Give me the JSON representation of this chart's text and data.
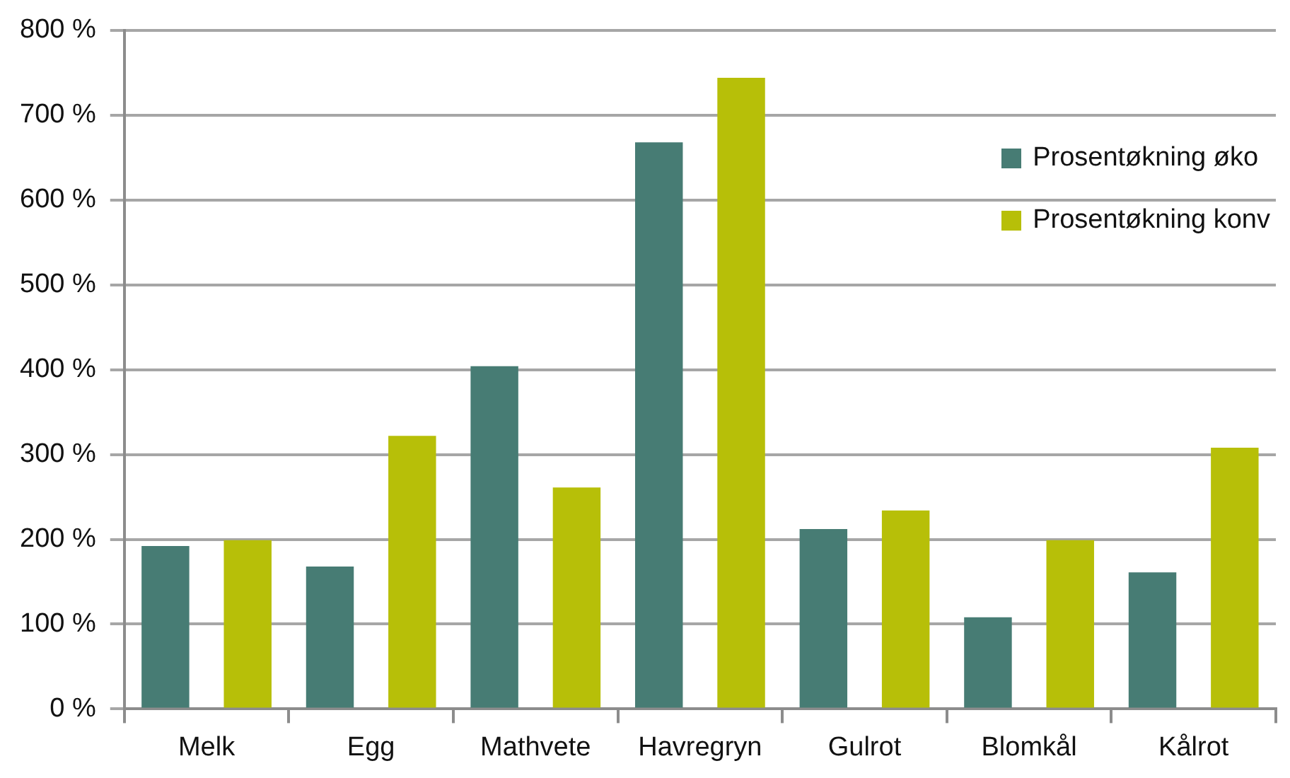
{
  "chart_data": {
    "type": "bar",
    "categories": [
      "Melk",
      "Egg",
      "Mathvete",
      "Havregryn",
      "Gulrot",
      "Blomkål",
      "Kålrot"
    ],
    "series": [
      {
        "name": "Prosentøkning øko",
        "color": "#477c74",
        "values": [
          192,
          168,
          404,
          668,
          212,
          108,
          161
        ]
      },
      {
        "name": "Prosentøkning konv",
        "color": "#b7bf08",
        "values": [
          199,
          322,
          261,
          744,
          234,
          199,
          308
        ]
      }
    ],
    "ylim": [
      0,
      800
    ],
    "yticks": [
      {
        "value": 0,
        "label": "0 %"
      },
      {
        "value": 100,
        "label": "100 %"
      },
      {
        "value": 200,
        "label": "200 %"
      },
      {
        "value": 300,
        "label": "300 %"
      },
      {
        "value": 400,
        "label": "400 %"
      },
      {
        "value": 500,
        "label": "500 %"
      },
      {
        "value": 600,
        "label": "600 %"
      },
      {
        "value": 700,
        "label": "700 %"
      },
      {
        "value": 800,
        "label": "800 %"
      }
    ],
    "grid": "y",
    "legend": "top right"
  }
}
